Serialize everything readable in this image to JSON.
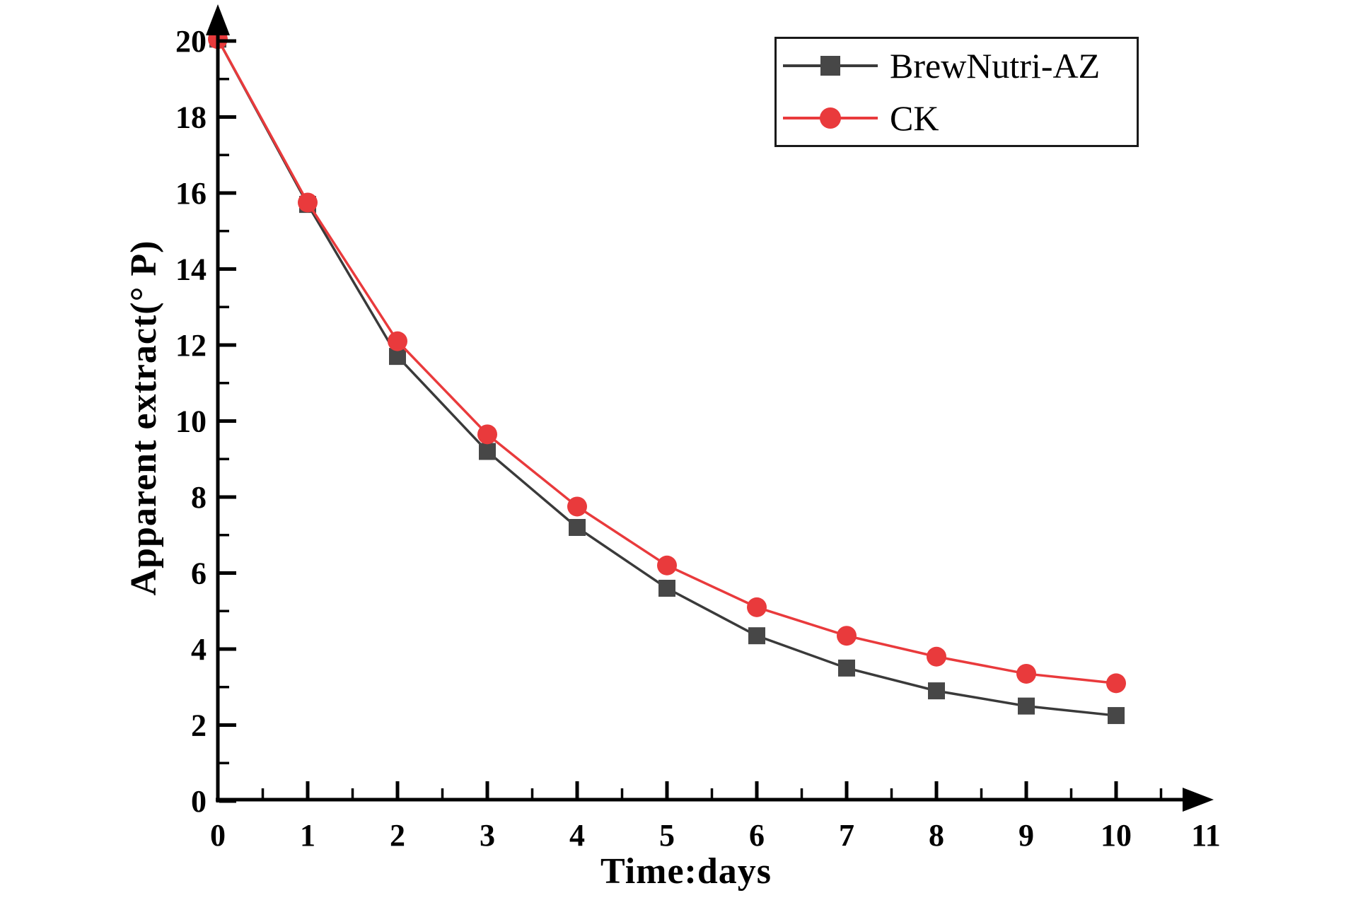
{
  "chart_data": {
    "type": "line",
    "title": "",
    "xlabel": "Time:days",
    "ylabel": "Apparent extract(° P)",
    "xlim": [
      0,
      11
    ],
    "ylim": [
      0,
      20
    ],
    "grid": false,
    "x": [
      0,
      1,
      2,
      3,
      4,
      5,
      6,
      7,
      8,
      9,
      10
    ],
    "series": [
      {
        "name": "BrewNutri-AZ",
        "marker": "square",
        "marker_color": "#474747",
        "line_color": "#3a3a3a",
        "values": [
          20.05,
          15.7,
          11.7,
          9.2,
          7.2,
          5.6,
          4.35,
          3.5,
          2.9,
          2.5,
          2.25
        ]
      },
      {
        "name": "CK",
        "marker": "circle",
        "marker_color": "#e93a3c",
        "line_color": "#e93a3c",
        "values": [
          20.05,
          15.75,
          12.1,
          9.65,
          7.75,
          6.2,
          5.1,
          4.35,
          3.8,
          3.35,
          3.1
        ]
      }
    ],
    "x_tick_labels": [
      "0",
      "1",
      "2",
      "3",
      "4",
      "5",
      "6",
      "7",
      "8",
      "9",
      "10",
      "11"
    ],
    "x_tick_label_values": [
      0,
      1,
      2,
      3,
      4,
      5,
      6,
      7,
      8,
      9,
      10,
      11
    ],
    "x_major_tick_values": [
      0,
      1,
      2,
      3,
      4,
      5,
      6,
      7,
      8,
      9,
      10
    ],
    "x_minor_tick_values": [
      0.5,
      1.5,
      2.5,
      3.5,
      4.5,
      5.5,
      6.5,
      7.5,
      8.5,
      9.5,
      10.5
    ],
    "y_tick_labels": [
      "0",
      "2",
      "4",
      "6",
      "8",
      "10",
      "12",
      "14",
      "16",
      "18",
      "20"
    ],
    "y_major_tick_values": [
      0,
      2,
      4,
      6,
      8,
      10,
      12,
      14,
      16,
      18,
      20
    ],
    "y_minor_tick_values": [
      1,
      3,
      5,
      7,
      9,
      11,
      13,
      15,
      17,
      19
    ],
    "legend": {
      "position": "top-right",
      "entries": [
        "BrewNutri-AZ",
        "CK"
      ]
    }
  },
  "colors": {
    "axis": "#000000",
    "text": "#000000",
    "brewnutri_marker": "#474747",
    "brewnutri_line": "#3a3a3a",
    "ck": "#e93a3c",
    "background": "#ffffff"
  }
}
